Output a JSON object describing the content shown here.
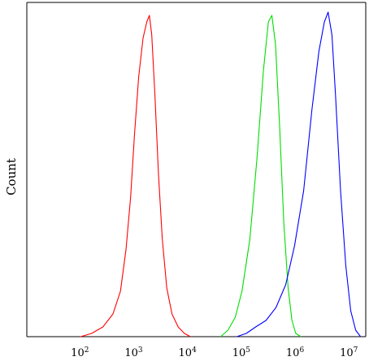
{
  "chart_data": {
    "type": "line",
    "title": "",
    "xlabel": "",
    "ylabel": "Count",
    "xscale": "log",
    "xlim": [
      10,
      20000000
    ],
    "ylim": [
      0,
      1
    ],
    "grid": false,
    "legend": "none",
    "x_ticks": [
      {
        "base": "10",
        "exp": "2",
        "value": 100
      },
      {
        "base": "10",
        "exp": "3",
        "value": 1000
      },
      {
        "base": "10",
        "exp": "4",
        "value": 10000
      },
      {
        "base": "10",
        "exp": "5",
        "value": 100000
      },
      {
        "base": "10",
        "exp": "6",
        "value": 1000000
      },
      {
        "base": "10",
        "exp": "7",
        "value": 10000000
      }
    ],
    "series": [
      {
        "color": "#ff0000",
        "x": [
          100,
          160,
          260,
          400,
          550,
          700,
          850,
          1000,
          1200,
          1450,
          1700,
          1900,
          2100,
          2400,
          2800,
          3300,
          4000,
          5000,
          6500,
          8500,
          11000
        ],
        "y": [
          0.0,
          0.01,
          0.03,
          0.07,
          0.14,
          0.27,
          0.43,
          0.62,
          0.8,
          0.92,
          0.97,
          0.99,
          0.93,
          0.75,
          0.5,
          0.3,
          0.15,
          0.07,
          0.03,
          0.01,
          0.0
        ]
      },
      {
        "color": "#00dd00",
        "x": [
          40000,
          55000,
          75000,
          100000,
          140000,
          190000,
          250000,
          310000,
          360000,
          420000,
          500000,
          600000,
          720000,
          850000,
          1000000,
          1250000
        ],
        "y": [
          0.0,
          0.02,
          0.06,
          0.14,
          0.3,
          0.55,
          0.82,
          0.97,
          0.99,
          0.9,
          0.65,
          0.35,
          0.15,
          0.05,
          0.01,
          0.0
        ]
      },
      {
        "color": "#0000ff",
        "x": [
          80000,
          120000,
          180000,
          280000,
          430000,
          650000,
          950000,
          1400000,
          2000000,
          2700000,
          3400000,
          4000000,
          4700000,
          5500000,
          6800000,
          8500000,
          10500000,
          13000000,
          16000000
        ],
        "y": [
          0.0,
          0.01,
          0.03,
          0.05,
          0.09,
          0.16,
          0.28,
          0.45,
          0.7,
          0.88,
          0.97,
          1.0,
          0.93,
          0.74,
          0.45,
          0.22,
          0.08,
          0.02,
          0.0
        ]
      }
    ]
  }
}
